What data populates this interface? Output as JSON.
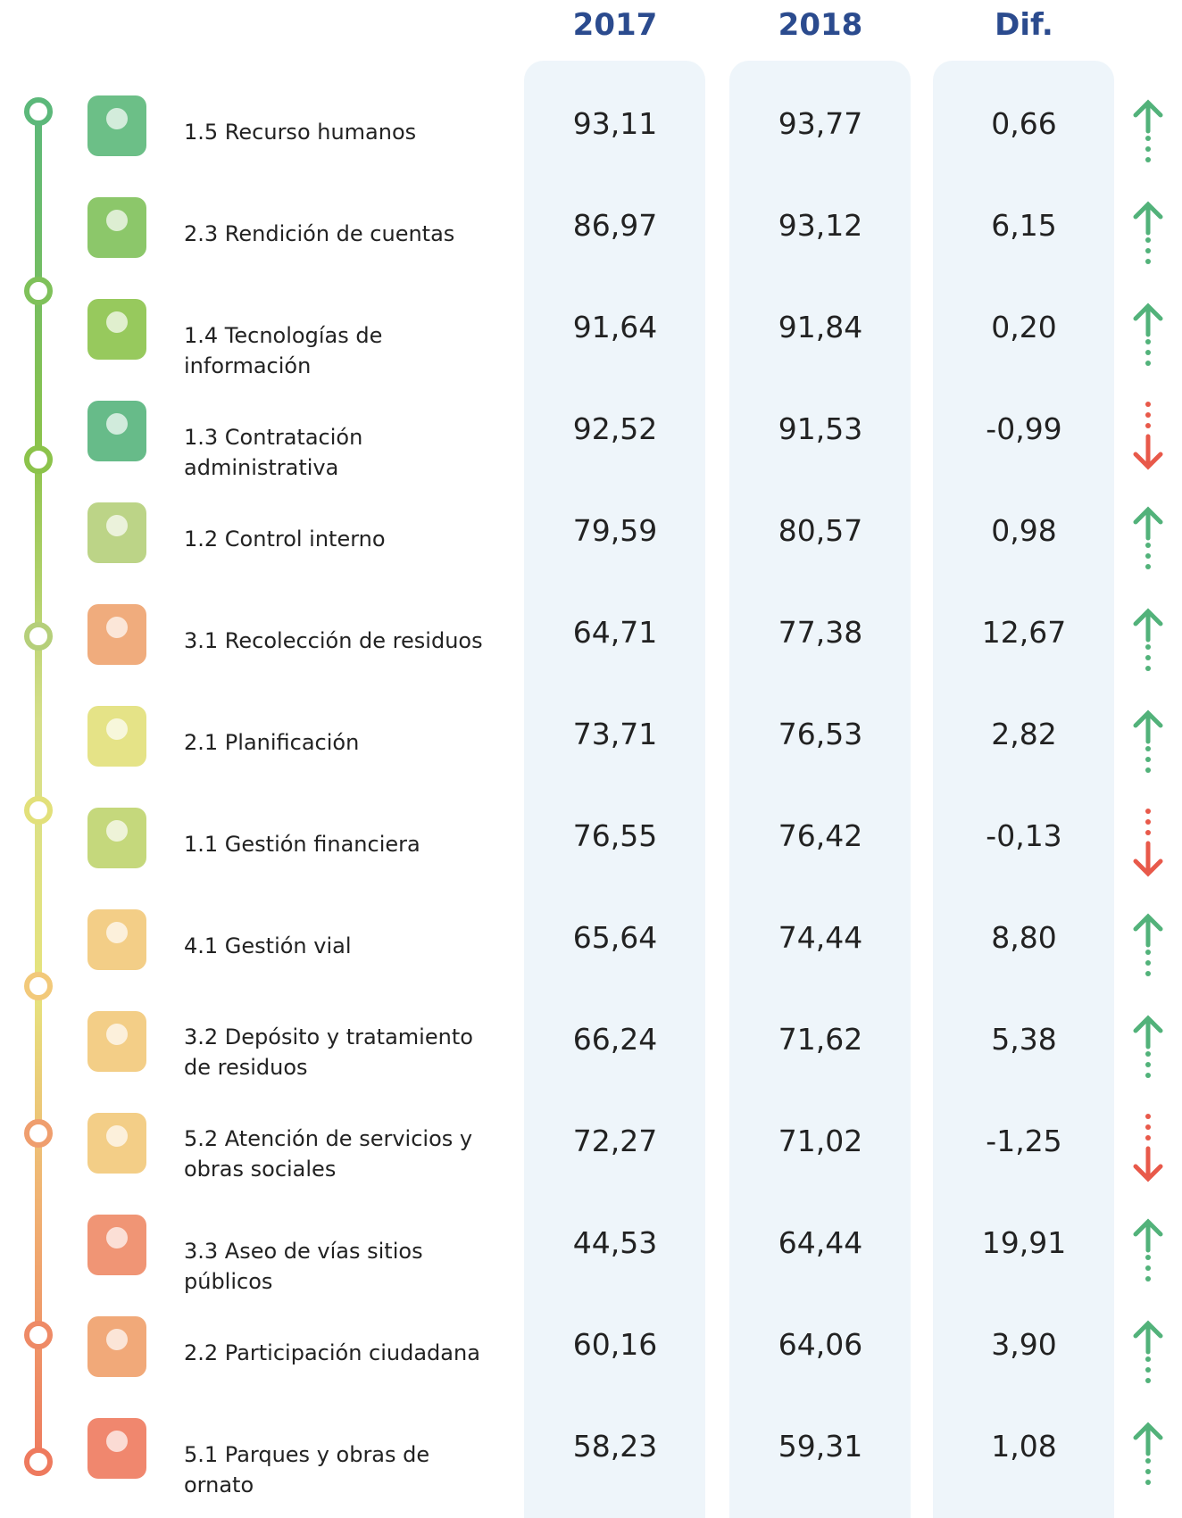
{
  "header": {
    "columns": [
      "2017",
      "2018",
      "Dif."
    ]
  },
  "table": {
    "rows": [
      [
        "1.5 Recurso humanos",
        "93,11",
        "93,77",
        "0,66"
      ],
      [
        "2.3 Rendición de cuentas",
        "86,97",
        "93,12",
        "6,15"
      ],
      [
        "1.4 Tecnologías de información",
        "91,64",
        "91,84",
        "0,20"
      ],
      [
        "1.3 Contratación administrativa",
        "92,52",
        "91,53",
        "-0,99"
      ],
      [
        "1.2 Control interno",
        "79,59",
        "80,57",
        "0,98"
      ],
      [
        "3.1 Recolección de residuos",
        "64,71",
        "77,38",
        "12,67"
      ],
      [
        "2.1 Planificación",
        "73,71",
        "76,53",
        "2,82"
      ],
      [
        "1.1 Gestión financiera",
        "76,55",
        "76,42",
        "-0,13"
      ],
      [
        "4.1 Gestión vial",
        "65,64",
        "74,44",
        "8,80"
      ],
      [
        "3.2 Depósito y tratamiento de residuos",
        "66,24",
        "71,62",
        "5,38"
      ],
      [
        "5.2 Atención de servicios y obras sociales",
        "72,27",
        "71,02",
        "-1,25"
      ],
      [
        "3.3 Aseo de vías sitios públicos",
        "44,53",
        "64,44",
        "19,91"
      ],
      [
        "2.2 Participación ciudadana",
        "60,16",
        "64,06",
        "3,90"
      ],
      [
        "5.1 Parques y obras de ornato",
        "58,23",
        "59,31",
        "1,08"
      ]
    ]
  }
}
